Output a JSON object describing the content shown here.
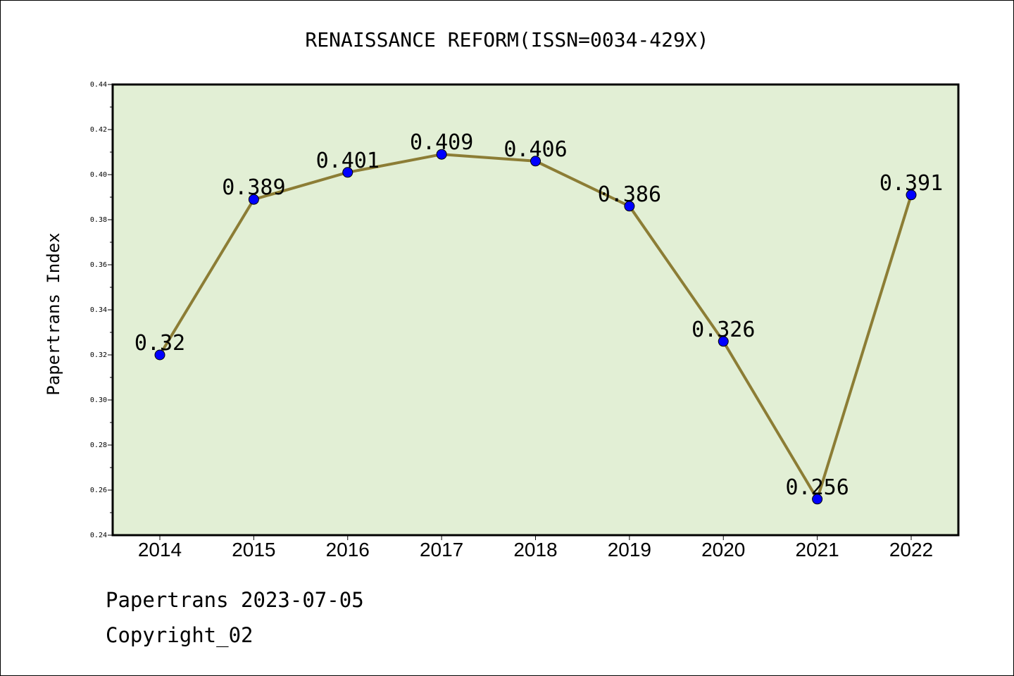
{
  "chart_data": {
    "type": "line",
    "title": "RENAISSANCE REFORM(ISSN=0034-429X)",
    "xlabel": "",
    "ylabel": "Papertrans Index",
    "categories": [
      "2014",
      "2015",
      "2016",
      "2017",
      "2018",
      "2019",
      "2020",
      "2021",
      "2022"
    ],
    "series": [
      {
        "values": [
          0.32,
          0.389,
          0.401,
          0.409,
          0.406,
          0.386,
          0.326,
          0.256,
          0.391
        ],
        "data_labels": [
          "0.32",
          "0.389",
          "0.401",
          "0.409",
          "0.406",
          "0.386",
          "0.326",
          "0.256",
          "0.391"
        ]
      }
    ],
    "ylim": [
      0.24,
      0.44
    ],
    "yticks": [
      "0.24",
      "0.26",
      "0.28",
      "0.30",
      "0.32",
      "0.34",
      "0.36",
      "0.38",
      "0.40",
      "0.42",
      "0.44"
    ],
    "grid": false,
    "colors": {
      "plot_background": "#e2efd5",
      "line": "#8c7d35",
      "marker": "#0000ff"
    }
  },
  "footer": {
    "source": "Papertrans 2023-07-05",
    "copyright": "Copyright_02"
  }
}
